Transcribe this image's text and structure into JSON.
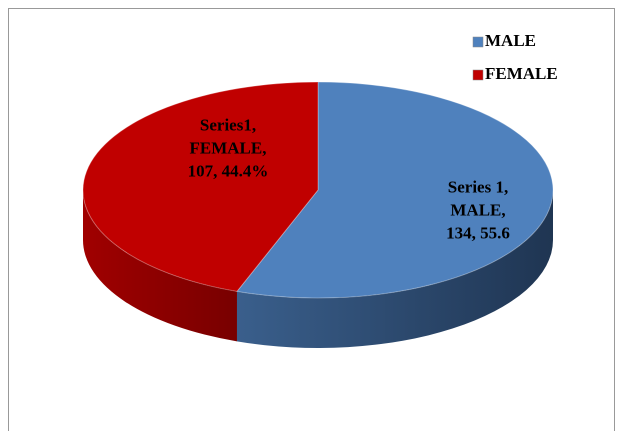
{
  "chart_data": {
    "type": "pie",
    "categories": [
      "MALE",
      "FEMALE"
    ],
    "values": [
      134,
      107
    ],
    "value_labels": [
      "Series 1,\nMALE,\n134, 55.6",
      "Series1,\nFEMALE,\n107, 44.4%"
    ],
    "colors": [
      "#4f81bd",
      "#c00000"
    ],
    "legend": "top-right"
  }
}
